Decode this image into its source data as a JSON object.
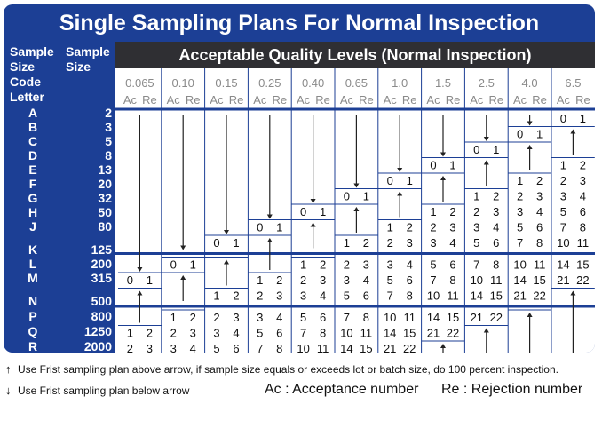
{
  "title": "Single Sampling Plans For Normal Inspection",
  "header": {
    "sample_size_code_letter": [
      "Sample",
      "Size",
      "Code",
      "Letter"
    ],
    "sample_size": [
      "Sample",
      "Size"
    ],
    "aql_banner": "Acceptable Quality Levels (Normal Inspection)",
    "ac_label": "Ac",
    "re_label": "Re"
  },
  "aql_levels": [
    "0.065",
    "0.10",
    "0.15",
    "0.25",
    "0.40",
    "0.65",
    "1.0",
    "1.5",
    "2.5",
    "4.0",
    "6.5"
  ],
  "rows": [
    {
      "code": "A",
      "size": "2",
      "cells": [
        "D",
        "D",
        "D",
        "D",
        "D",
        "D",
        "D",
        "D",
        "D",
        "D",
        "0 1"
      ]
    },
    {
      "code": "B",
      "size": "3",
      "cells": [
        "D",
        "D",
        "D",
        "D",
        "D",
        "D",
        "D",
        "D",
        "D",
        "0 1",
        "U"
      ]
    },
    {
      "code": "C",
      "size": "5",
      "cells": [
        "D",
        "D",
        "D",
        "D",
        "D",
        "D",
        "D",
        "D",
        "0 1",
        "U",
        "U"
      ]
    },
    {
      "code": "D",
      "size": "8",
      "cells": [
        "D",
        "D",
        "D",
        "D",
        "D",
        "D",
        "D",
        "0 1",
        "U",
        "U",
        "1 2"
      ]
    },
    {
      "code": "E",
      "size": "13",
      "cells": [
        "D",
        "D",
        "D",
        "D",
        "D",
        "D",
        "0 1",
        "U",
        "U",
        "1 2",
        "2 3"
      ]
    },
    {
      "code": "F",
      "size": "20",
      "cells": [
        "D",
        "D",
        "D",
        "D",
        "D",
        "0 1",
        "U",
        "U",
        "1 2",
        "2 3",
        "3 4"
      ]
    },
    {
      "code": "G",
      "size": "32",
      "cells": [
        "D",
        "D",
        "D",
        "D",
        "0 1",
        "U",
        "U",
        "1 2",
        "2 3",
        "3 4",
        "5 6"
      ]
    },
    {
      "code": "H",
      "size": "50",
      "cells": [
        "D",
        "D",
        "D",
        "0 1",
        "U",
        "U",
        "1 2",
        "2 3",
        "3 4",
        "5 6",
        "7 8"
      ]
    },
    {
      "code": "J",
      "size": "80",
      "cells": [
        "D",
        "D",
        "0 1",
        "U",
        "U",
        "1 2",
        "2 3",
        "3 4",
        "5 6",
        "7 8",
        "10 11"
      ]
    },
    {
      "code": "K",
      "size": "125",
      "cells": [
        "D",
        "0 1",
        "U",
        "U",
        "1 2",
        "2 3",
        "3 4",
        "5 6",
        "7 8",
        "10 11",
        "14 15"
      ]
    },
    {
      "code": "L",
      "size": "200",
      "cells": [
        "0 1",
        "U",
        "U",
        "1 2",
        "2 3",
        "3 4",
        "5 6",
        "7 8",
        "10 11",
        "14 15",
        "21 22"
      ]
    },
    {
      "code": "M",
      "size": "315",
      "cells": [
        "U",
        "U",
        "1 2",
        "2 3",
        "3 4",
        "5 6",
        "7 8",
        "10 11",
        "14 15",
        "21 22",
        "U"
      ]
    },
    {
      "code": "N",
      "size": "500",
      "cells": [
        "U",
        "1 2",
        "2 3",
        "3 4",
        "5 6",
        "7 8",
        "10 11",
        "14 15",
        "21 22",
        "U",
        "U"
      ]
    },
    {
      "code": "P",
      "size": "800",
      "cells": [
        "1 2",
        "2 3",
        "3 4",
        "5 6",
        "7 8",
        "10 11",
        "14 15",
        "21 22",
        "U",
        "U",
        "U"
      ]
    },
    {
      "code": "Q",
      "size": "1250",
      "cells": [
        "2 3",
        "3 4",
        "5 6",
        "7 8",
        "10 11",
        "14 15",
        "21 22",
        "U",
        "U",
        "U",
        "U"
      ]
    },
    {
      "code": "R",
      "size": "2000",
      "cells": [
        "3 4",
        "5 6",
        "7 8",
        "10 11",
        "14 15",
        "21 22",
        "U",
        "U",
        "U",
        "U",
        "U"
      ]
    }
  ],
  "legend": {
    "up_arrow_text": "Use Frist sampling plan above arrow, if sample size equals or exceeds lot or batch size, do 100 percent inspection.",
    "down_arrow_text": "Use Frist sampling plan below arrow",
    "ac_definition": "Ac : Acceptance number",
    "re_definition": "Re :  Rejection number"
  },
  "colors": {
    "frame_blue": "#1c3f95",
    "banner_dark": "#2f2f33",
    "aql_level_text": "#8a8a8a",
    "grid_line": "#1c3f95",
    "cell_text": "#111111"
  },
  "icons": {
    "up_arrow": "up-arrow-icon",
    "down_arrow": "down-arrow-icon"
  }
}
